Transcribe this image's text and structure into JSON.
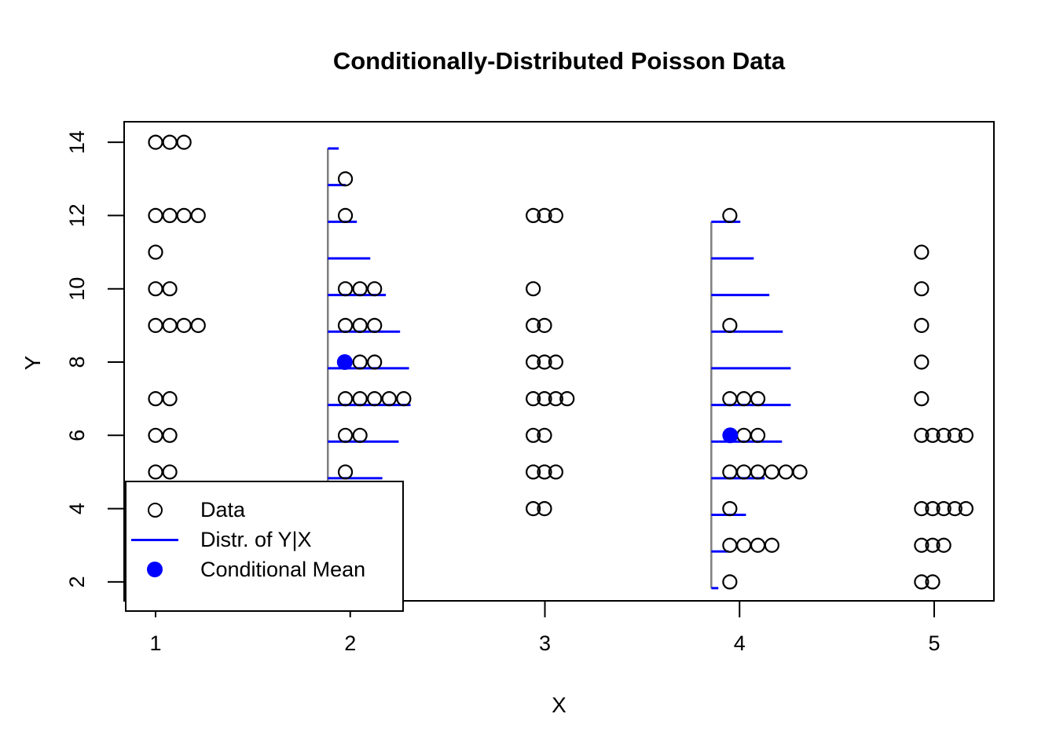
{
  "chart_data": {
    "type": "scatter",
    "title": "Conditionally-Distributed Poisson Data",
    "xlabel": "X",
    "ylabel": "Y",
    "x_ticks": [
      1,
      2,
      3,
      4,
      5
    ],
    "y_ticks": [
      2,
      4,
      6,
      8,
      10,
      12,
      14
    ],
    "xlim": [
      0.84,
      5.31
    ],
    "ylim": [
      1.48,
      14.56
    ],
    "grid": false,
    "colors": {
      "data_point": "#000000",
      "distribution": "#0000FF",
      "conditional_mean": "#0000FF",
      "spine": "#7f7f7f",
      "axis": "#000000",
      "background": "#ffffff"
    },
    "series": [
      {
        "name": "Data",
        "marker": "open-circle"
      },
      {
        "name": "Distr. of Y|X",
        "marker": "line"
      },
      {
        "name": "Conditional Mean",
        "marker": "filled-circle"
      }
    ],
    "points": [
      {
        "x": 1,
        "y": 14,
        "n": 3
      },
      {
        "x": 1,
        "y": 12,
        "n": 4
      },
      {
        "x": 1,
        "y": 11,
        "n": 1
      },
      {
        "x": 1,
        "y": 10,
        "n": 2
      },
      {
        "x": 1,
        "y": 9,
        "n": 4
      },
      {
        "x": 1,
        "y": 7,
        "n": 2
      },
      {
        "x": 1,
        "y": 6,
        "n": 2
      },
      {
        "x": 1,
        "y": 5,
        "n": 2
      },
      {
        "x": 2,
        "y": 13,
        "n": 1
      },
      {
        "x": 2,
        "y": 12,
        "n": 1
      },
      {
        "x": 2,
        "y": 10,
        "n": 3
      },
      {
        "x": 2,
        "y": 9,
        "n": 3
      },
      {
        "x": 2,
        "y": 8,
        "n": 2,
        "after_mean": true
      },
      {
        "x": 2,
        "y": 7,
        "n": 5
      },
      {
        "x": 2,
        "y": 6,
        "n": 2
      },
      {
        "x": 2,
        "y": 5,
        "n": 1
      },
      {
        "x": 3,
        "y": 12,
        "n": 3
      },
      {
        "x": 3,
        "y": 10,
        "n": 1
      },
      {
        "x": 3,
        "y": 9,
        "n": 2
      },
      {
        "x": 3,
        "y": 8,
        "n": 3
      },
      {
        "x": 3,
        "y": 7,
        "n": 4
      },
      {
        "x": 3,
        "y": 6,
        "n": 2
      },
      {
        "x": 3,
        "y": 5,
        "n": 3
      },
      {
        "x": 3,
        "y": 4,
        "n": 2
      },
      {
        "x": 4,
        "y": 12,
        "n": 1
      },
      {
        "x": 4,
        "y": 9,
        "n": 1
      },
      {
        "x": 4,
        "y": 7,
        "n": 3
      },
      {
        "x": 4,
        "y": 6,
        "n": 2,
        "after_mean": true
      },
      {
        "x": 4,
        "y": 5,
        "n": 6
      },
      {
        "x": 4,
        "y": 4,
        "n": 1
      },
      {
        "x": 4,
        "y": 3,
        "n": 4
      },
      {
        "x": 4,
        "y": 2,
        "n": 1
      },
      {
        "x": 5,
        "y": 11,
        "n": 1
      },
      {
        "x": 5,
        "y": 10,
        "n": 1
      },
      {
        "x": 5,
        "y": 9,
        "n": 1
      },
      {
        "x": 5,
        "y": 8,
        "n": 1
      },
      {
        "x": 5,
        "y": 7,
        "n": 1
      },
      {
        "x": 5,
        "y": 6,
        "n": 5
      },
      {
        "x": 5,
        "y": 4,
        "n": 5
      },
      {
        "x": 5,
        "y": 3,
        "n": 3
      },
      {
        "x": 5,
        "y": 2,
        "n": 2
      }
    ],
    "conditional_means": [
      {
        "x": 2,
        "y": 8
      },
      {
        "x": 4,
        "y": 6
      }
    ],
    "distributions": [
      {
        "x": 2,
        "spine_x": 1.885,
        "spine_y": [
          1.83,
          13.83
        ],
        "bars": [
          {
            "y": 2,
            "len": 0.04
          },
          {
            "y": 3,
            "len": 0.085
          },
          {
            "y": 4,
            "len": 0.17
          },
          {
            "y": 5,
            "len": 0.28
          },
          {
            "y": 6,
            "len": 0.364
          },
          {
            "y": 7,
            "len": 0.425
          },
          {
            "y": 8,
            "len": 0.417
          },
          {
            "y": 9,
            "len": 0.371
          },
          {
            "y": 10,
            "len": 0.298
          },
          {
            "y": 11,
            "len": 0.218
          },
          {
            "y": 12,
            "len": 0.149
          },
          {
            "y": 13,
            "len": 0.092
          },
          {
            "y": 14,
            "len": 0.056
          }
        ]
      },
      {
        "x": 4,
        "spine_x": 3.855,
        "spine_y": [
          1.83,
          11.83
        ],
        "bars": [
          {
            "y": 2,
            "len": 0.036
          },
          {
            "y": 3,
            "len": 0.089
          },
          {
            "y": 4,
            "len": 0.178
          },
          {
            "y": 5,
            "len": 0.274
          },
          {
            "y": 6,
            "len": 0.363
          },
          {
            "y": 7,
            "len": 0.408
          },
          {
            "y": 8,
            "len": 0.408
          },
          {
            "y": 9,
            "len": 0.367
          },
          {
            "y": 10,
            "len": 0.298
          },
          {
            "y": 11,
            "len": 0.218
          },
          {
            "y": 12,
            "len": 0.149
          }
        ]
      }
    ],
    "jitter": {
      "1": {
        "start": 0.0,
        "step": 0.073
      },
      "2": {
        "start": -0.025,
        "step": 0.075
      },
      "3": {
        "start": -0.06,
        "step": 0.058
      },
      "4": {
        "start": -0.05,
        "step": 0.072
      },
      "5": {
        "start": -0.065,
        "step": 0.057
      }
    },
    "mean_x_offset": {
      "2": -0.028,
      "4": -0.048
    }
  },
  "legend": {
    "items": [
      {
        "label": "Data",
        "icon": "open-circle"
      },
      {
        "label": "Distr. of Y|X",
        "icon": "blue-line"
      },
      {
        "label": "Conditional Mean",
        "icon": "blue-filled-dot"
      }
    ]
  }
}
